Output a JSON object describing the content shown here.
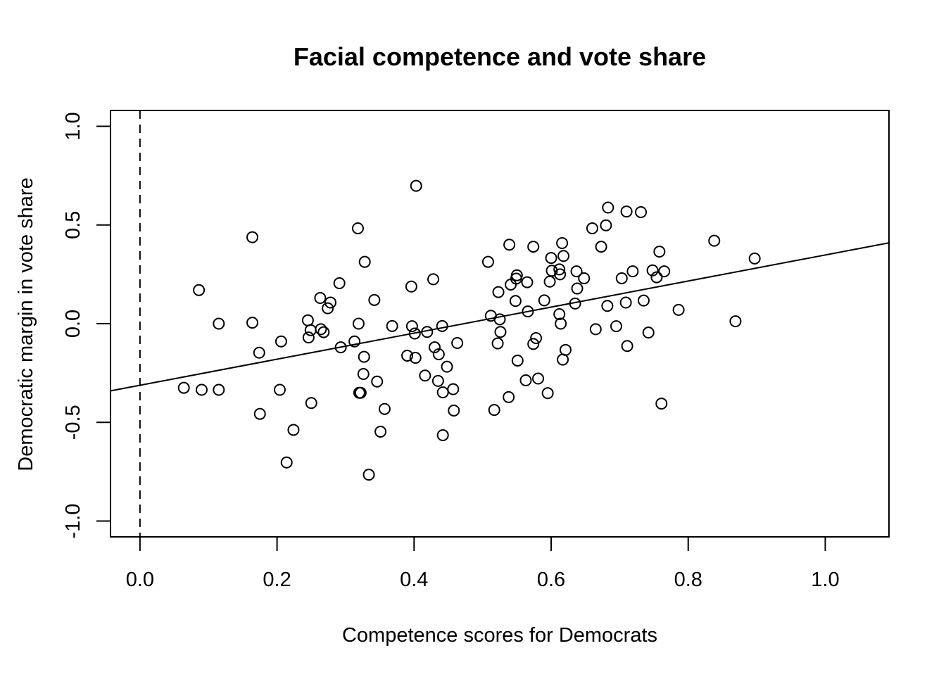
{
  "chart_data": {
    "type": "scatter",
    "title": "Facial competence and vote share",
    "xlabel": "Competence scores for Democrats",
    "ylabel": "Democratic margin in vote share",
    "xlim": [
      -0.043,
      1.093
    ],
    "ylim": [
      -1.08,
      1.08
    ],
    "x_ticks": [
      0.0,
      0.2,
      0.4,
      0.6,
      0.8,
      1.0
    ],
    "x_tick_labels": [
      "0.0",
      "0.2",
      "0.4",
      "0.6",
      "0.8",
      "1.0"
    ],
    "y_ticks": [
      -1.0,
      -0.5,
      0.0,
      0.5,
      1.0
    ],
    "y_tick_labels": [
      "-1.0",
      "-0.5",
      "0.0",
      "0.5",
      "1.0"
    ],
    "grid": false,
    "marker": "open-circle",
    "vertical_reference_line": {
      "x": 0.0,
      "style": "dashed"
    },
    "regression_line": {
      "intercept": -0.312,
      "slope": 0.66
    },
    "points": [
      [
        0.064,
        -0.325
      ],
      [
        0.09,
        -0.335
      ],
      [
        0.086,
        0.17
      ],
      [
        0.115,
        0.0
      ],
      [
        0.115,
        -0.335
      ],
      [
        0.164,
        0.438
      ],
      [
        0.164,
        0.005
      ],
      [
        0.174,
        -0.147
      ],
      [
        0.175,
        -0.457
      ],
      [
        0.204,
        -0.335
      ],
      [
        0.206,
        -0.09
      ],
      [
        0.214,
        -0.703
      ],
      [
        0.224,
        -0.538
      ],
      [
        0.245,
        0.017
      ],
      [
        0.246,
        -0.07
      ],
      [
        0.249,
        -0.033
      ],
      [
        0.25,
        -0.402
      ],
      [
        0.263,
        0.13
      ],
      [
        0.264,
        -0.028
      ],
      [
        0.268,
        -0.043
      ],
      [
        0.274,
        0.078
      ],
      [
        0.278,
        0.107
      ],
      [
        0.291,
        0.205
      ],
      [
        0.293,
        -0.12
      ],
      [
        0.313,
        -0.09
      ],
      [
        0.318,
        0.483
      ],
      [
        0.319,
        0.0
      ],
      [
        0.32,
        -0.35
      ],
      [
        0.322,
        -0.35
      ],
      [
        0.326,
        -0.255
      ],
      [
        0.327,
        -0.168
      ],
      [
        0.328,
        0.313
      ],
      [
        0.334,
        -0.765
      ],
      [
        0.342,
        0.12
      ],
      [
        0.346,
        -0.293
      ],
      [
        0.351,
        -0.547
      ],
      [
        0.357,
        -0.432
      ],
      [
        0.368,
        -0.012
      ],
      [
        0.39,
        -0.162
      ],
      [
        0.396,
        0.188
      ],
      [
        0.397,
        -0.013
      ],
      [
        0.401,
        -0.05
      ],
      [
        0.402,
        -0.173
      ],
      [
        0.403,
        0.698
      ],
      [
        0.416,
        -0.263
      ],
      [
        0.419,
        -0.042
      ],
      [
        0.428,
        0.225
      ],
      [
        0.43,
        -0.12
      ],
      [
        0.435,
        -0.29
      ],
      [
        0.436,
        -0.155
      ],
      [
        0.441,
        -0.012
      ],
      [
        0.442,
        -0.348
      ],
      [
        0.442,
        -0.565
      ],
      [
        0.448,
        -0.218
      ],
      [
        0.457,
        -0.332
      ],
      [
        0.458,
        -0.44
      ],
      [
        0.463,
        -0.098
      ],
      [
        0.508,
        0.313
      ],
      [
        0.512,
        0.04
      ],
      [
        0.517,
        -0.437
      ],
      [
        0.522,
        -0.1
      ],
      [
        0.523,
        0.16
      ],
      [
        0.525,
        0.022
      ],
      [
        0.526,
        -0.042
      ],
      [
        0.538,
        -0.372
      ],
      [
        0.539,
        0.4
      ],
      [
        0.541,
        0.198
      ],
      [
        0.548,
        0.115
      ],
      [
        0.549,
        0.228
      ],
      [
        0.55,
        0.245
      ],
      [
        0.551,
        -0.187
      ],
      [
        0.563,
        -0.287
      ],
      [
        0.565,
        0.21
      ],
      [
        0.566,
        0.062
      ],
      [
        0.574,
        -0.103
      ],
      [
        0.574,
        0.39
      ],
      [
        0.578,
        -0.073
      ],
      [
        0.581,
        -0.278
      ],
      [
        0.59,
        0.118
      ],
      [
        0.595,
        -0.352
      ],
      [
        0.598,
        0.213
      ],
      [
        0.6,
        0.333
      ],
      [
        0.601,
        0.268
      ],
      [
        0.612,
        0.048
      ],
      [
        0.612,
        0.275
      ],
      [
        0.613,
        0.25
      ],
      [
        0.614,
        0.0
      ],
      [
        0.616,
        0.408
      ],
      [
        0.617,
        -0.182
      ],
      [
        0.618,
        0.343
      ],
      [
        0.621,
        -0.133
      ],
      [
        0.635,
        0.102
      ],
      [
        0.637,
        0.265
      ],
      [
        0.638,
        0.178
      ],
      [
        0.648,
        0.23
      ],
      [
        0.66,
        0.483
      ],
      [
        0.665,
        -0.028
      ],
      [
        0.673,
        0.39
      ],
      [
        0.68,
        0.498
      ],
      [
        0.682,
        0.09
      ],
      [
        0.683,
        0.588
      ],
      [
        0.695,
        -0.013
      ],
      [
        0.703,
        0.23
      ],
      [
        0.709,
        0.107
      ],
      [
        0.71,
        0.568
      ],
      [
        0.711,
        -0.113
      ],
      [
        0.719,
        0.265
      ],
      [
        0.731,
        0.565
      ],
      [
        0.735,
        0.117
      ],
      [
        0.742,
        -0.045
      ],
      [
        0.748,
        0.27
      ],
      [
        0.754,
        0.235
      ],
      [
        0.758,
        0.365
      ],
      [
        0.761,
        -0.405
      ],
      [
        0.765,
        0.265
      ],
      [
        0.786,
        0.07
      ],
      [
        0.838,
        0.42
      ],
      [
        0.869,
        0.012
      ],
      [
        0.897,
        0.33
      ]
    ]
  }
}
